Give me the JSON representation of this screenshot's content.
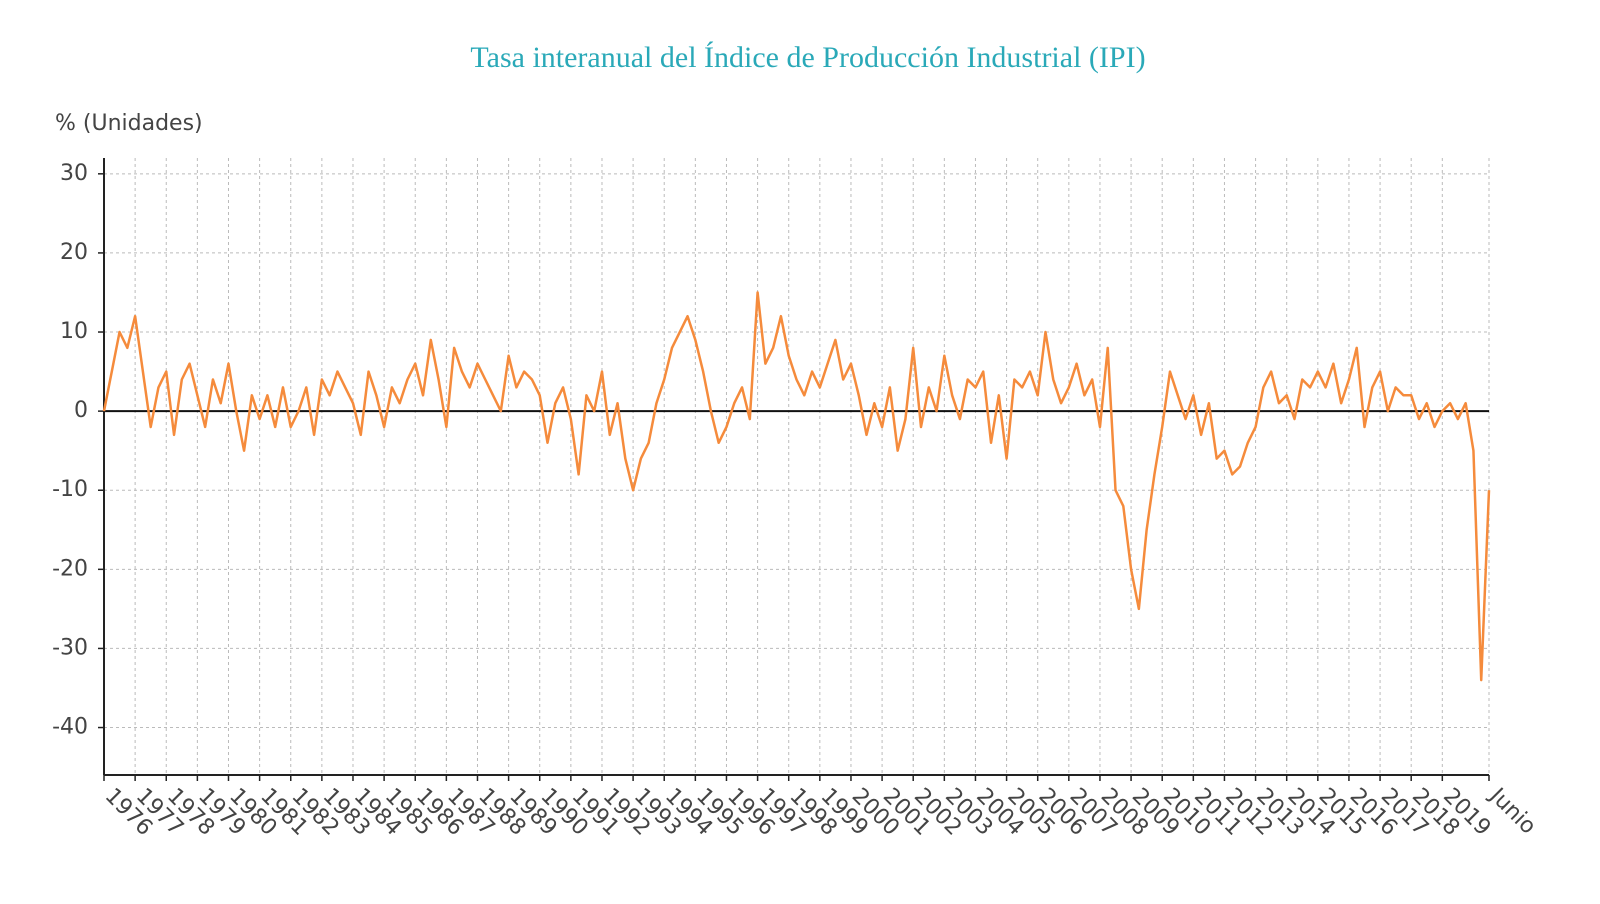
{
  "chart_data": {
    "type": "line",
    "title": "Tasa interanual del Índice de Producción Industrial (IPI)",
    "y_label": "% (Unidades)",
    "categories": [
      "1976",
      null,
      null,
      null,
      "1977",
      null,
      null,
      null,
      "1978",
      null,
      null,
      null,
      "1979",
      null,
      null,
      null,
      "1980",
      null,
      null,
      null,
      "1981",
      null,
      null,
      null,
      "1982",
      null,
      null,
      null,
      "1983",
      null,
      null,
      null,
      "1984",
      null,
      null,
      null,
      "1985",
      null,
      null,
      null,
      "1986",
      null,
      null,
      null,
      "1987",
      null,
      null,
      null,
      "1988",
      null,
      null,
      null,
      "1989",
      null,
      null,
      null,
      "1990",
      null,
      null,
      null,
      "1991",
      null,
      null,
      null,
      "1992",
      null,
      null,
      null,
      "1993",
      null,
      null,
      null,
      "1994",
      null,
      null,
      null,
      "1995",
      null,
      null,
      null,
      "1996",
      null,
      null,
      null,
      "1997",
      null,
      null,
      null,
      "1998",
      null,
      null,
      null,
      "1999",
      null,
      null,
      null,
      "2000",
      null,
      null,
      null,
      "2001",
      null,
      null,
      null,
      "2002",
      null,
      null,
      null,
      "2003",
      null,
      null,
      null,
      "2004",
      null,
      null,
      null,
      "2005",
      null,
      null,
      null,
      "2006",
      null,
      null,
      null,
      "2007",
      null,
      null,
      null,
      "2008",
      null,
      null,
      null,
      "2009",
      null,
      null,
      null,
      "2010",
      null,
      null,
      null,
      "2011",
      null,
      null,
      null,
      "2012",
      null,
      null,
      null,
      "2013",
      null,
      null,
      null,
      "2014",
      null,
      null,
      null,
      "2015",
      null,
      null,
      null,
      "2016",
      null,
      null,
      null,
      "2017",
      null,
      null,
      null,
      "2018",
      null,
      null,
      null,
      "2019",
      null,
      null,
      null,
      null,
      null,
      "Junio"
    ],
    "series": [
      {
        "color": "#f58b3c",
        "values": [
          0,
          5,
          10,
          8,
          12,
          5,
          -2,
          3,
          5,
          -3,
          4,
          6,
          2,
          -2,
          4,
          1,
          6,
          0,
          -5,
          2,
          -1,
          2,
          -2,
          3,
          -2,
          0,
          3,
          -3,
          4,
          2,
          5,
          3,
          1,
          -3,
          5,
          2,
          -2,
          3,
          1,
          4,
          6,
          2,
          9,
          4,
          -2,
          8,
          5,
          3,
          6,
          4,
          2,
          0,
          7,
          3,
          5,
          4,
          2,
          -4,
          1,
          3,
          -1,
          -8,
          2,
          0,
          5,
          -3,
          1,
          -6,
          -10,
          -6,
          -4,
          1,
          4,
          8,
          10,
          12,
          9,
          5,
          0,
          -4,
          -2,
          1,
          3,
          -1,
          15,
          6,
          8,
          12,
          7,
          4,
          2,
          5,
          3,
          6,
          9,
          4,
          6,
          2,
          -3,
          1,
          -2,
          3,
          -5,
          -1,
          8,
          -2,
          3,
          0,
          7,
          2,
          -1,
          4,
          3,
          5,
          -4,
          2,
          -6,
          4,
          3,
          5,
          2,
          10,
          4,
          1,
          3,
          6,
          2,
          4,
          -2,
          8,
          -10,
          -12,
          -20,
          -25,
          -15,
          -8,
          -2,
          5,
          2,
          -1,
          2,
          -3,
          1,
          -6,
          -5,
          -8,
          -7,
          -4,
          -2,
          3,
          5,
          1,
          2,
          -1,
          4,
          3,
          5,
          3,
          6,
          1,
          4,
          8,
          -2,
          3,
          5,
          0,
          3,
          2,
          2,
          -1,
          1,
          -2,
          0,
          1,
          -1,
          1,
          -5,
          -34,
          -10
        ]
      }
    ],
    "ylim": [
      -46,
      32
    ],
    "yticks": [
      -40,
      -30,
      -20,
      -10,
      0,
      10,
      20,
      30
    ],
    "grid": true,
    "zero_line": true
  }
}
